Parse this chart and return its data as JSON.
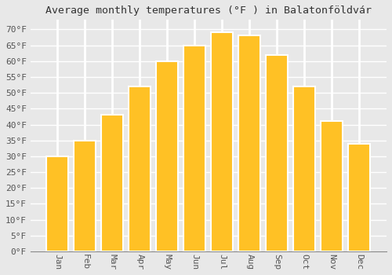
{
  "title": "Average monthly temperatures (°F ) in Balatonföldvár",
  "months": [
    "Jan",
    "Feb",
    "Mar",
    "Apr",
    "May",
    "Jun",
    "Jul",
    "Aug",
    "Sep",
    "Oct",
    "Nov",
    "Dec"
  ],
  "values": [
    30,
    35,
    43,
    52,
    60,
    65,
    69,
    68,
    62,
    52,
    41,
    34
  ],
  "bar_color_top": "#FFC125",
  "bar_color_bottom": "#FFA500",
  "bar_edge_color": "#FFFFFF",
  "ylim": [
    0,
    73
  ],
  "yticks": [
    0,
    5,
    10,
    15,
    20,
    25,
    30,
    35,
    40,
    45,
    50,
    55,
    60,
    65,
    70
  ],
  "ytick_labels": [
    "0°F",
    "5°F",
    "10°F",
    "15°F",
    "20°F",
    "25°F",
    "30°F",
    "35°F",
    "40°F",
    "45°F",
    "50°F",
    "55°F",
    "60°F",
    "65°F",
    "70°F"
  ],
  "bg_color": "#E8E8E8",
  "plot_bg_color": "#E8E8E8",
  "grid_color": "#FFFFFF",
  "title_fontsize": 9.5,
  "tick_fontsize": 8,
  "xlabel_rotation": 270
}
